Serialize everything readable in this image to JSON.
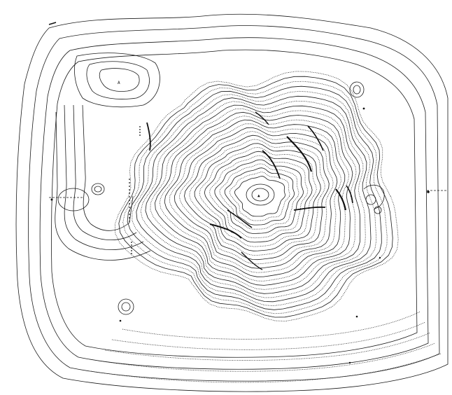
{
  "map": {
    "style": "hand-drawn topographic contour plan, black ink on white",
    "ink_color": "#1a1a1a",
    "background_color": "#ffffff",
    "features": [
      "central-summit-contours",
      "outer-terrace-contours",
      "upper-left-enclosure",
      "left-oval-pit",
      "lower-left-ring",
      "right-small-rings",
      "dashed-outline-left",
      "dashed-outline-right"
    ],
    "summit_marker": "▲"
  }
}
